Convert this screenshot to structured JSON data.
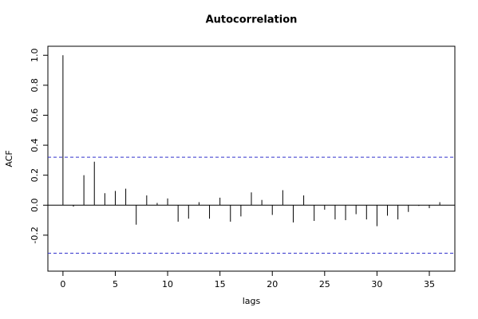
{
  "chart_data": {
    "type": "acf",
    "title": "Autocorrelation",
    "xlabel": "lags",
    "ylabel": "ACF",
    "x": [
      0,
      1,
      2,
      3,
      4,
      5,
      6,
      7,
      8,
      9,
      10,
      11,
      12,
      13,
      14,
      15,
      16,
      17,
      18,
      19,
      20,
      21,
      22,
      23,
      24,
      25,
      26,
      27,
      28,
      29,
      30,
      31,
      32,
      33,
      34,
      35,
      36
    ],
    "values": [
      1.0,
      -0.01,
      0.2,
      0.29,
      0.08,
      0.095,
      0.11,
      -0.13,
      0.065,
      0.015,
      0.045,
      -0.11,
      -0.09,
      0.02,
      -0.09,
      0.05,
      -0.11,
      -0.075,
      0.085,
      0.035,
      -0.065,
      0.1,
      -0.115,
      0.065,
      -0.105,
      -0.03,
      -0.095,
      -0.1,
      -0.06,
      -0.095,
      -0.14,
      -0.07,
      -0.095,
      -0.045,
      -0.005,
      -0.02,
      0.02
    ],
    "color": "#000000",
    "confidence_bounds": [
      0.32,
      -0.32
    ],
    "bound_color": "#3333cc",
    "xlim": [
      -1.44,
      37.44
    ],
    "xticks": [
      0,
      5,
      10,
      15,
      20,
      25,
      30,
      35
    ],
    "ylim": [
      -0.44,
      1.06
    ],
    "yticks": [
      {
        "value": -0.2,
        "label": "-0.2"
      },
      {
        "value": 0,
        "label": "0.0"
      },
      {
        "value": 0.2,
        "label": "0.2"
      },
      {
        "value": 0.4,
        "label": "0.4"
      },
      {
        "value": 0.6,
        "label": "0.6"
      },
      {
        "value": 0.8,
        "label": "0.8"
      },
      {
        "value": 1.0,
        "label": "1.0"
      }
    ]
  }
}
